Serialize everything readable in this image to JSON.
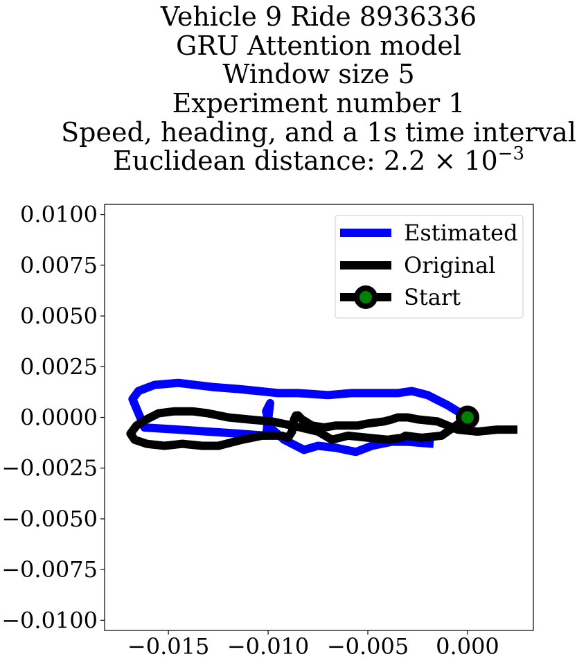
{
  "chart_data": {
    "type": "line",
    "title_lines": [
      "Vehicle 9 Ride 8936336",
      "GRU Attention model",
      "Window size 5",
      "Experiment number 1",
      "Speed, heading, and a 1s time interval"
    ],
    "title_distance_prefix": "Euclidean distance: 2.2 × 10",
    "title_distance_exponent": "−3",
    "xlabel": "",
    "ylabel": "",
    "xlim": [
      -0.0182,
      0.0033
    ],
    "ylim": [
      -0.0105,
      0.0105
    ],
    "xticks": [
      -0.015,
      -0.01,
      -0.005,
      0.0
    ],
    "xtick_labels": [
      "−0.015",
      "−0.010",
      "−0.005",
      "0.000"
    ],
    "yticks": [
      0.01,
      0.0075,
      0.005,
      0.0025,
      0.0,
      -0.0025,
      -0.005,
      -0.0075,
      -0.01
    ],
    "ytick_labels": [
      "0.0100",
      "0.0075",
      "0.0050",
      "0.0025",
      "0.0000",
      "−0.0025",
      "−0.0050",
      "−0.0075",
      "−0.0100"
    ],
    "legend_position": "top-right",
    "series": [
      {
        "name": "Estimated",
        "color": "#0000ff",
        "x": [
          0.0,
          -0.001,
          -0.002,
          -0.0028,
          -0.0035,
          -0.0045,
          -0.0058,
          -0.007,
          -0.0085,
          -0.0095,
          -0.0105,
          -0.0115,
          -0.0128,
          -0.0145,
          -0.0157,
          -0.0165,
          -0.0168,
          -0.0162,
          -0.0145,
          -0.013,
          -0.0115,
          -0.0101,
          -0.0099,
          -0.0101,
          -0.0099,
          -0.0092,
          -0.0082,
          -0.0075,
          -0.0066,
          -0.0056,
          -0.0048,
          -0.0038,
          -0.003,
          -0.0017
        ],
        "y": [
          0.0,
          0.0006,
          0.0011,
          0.0013,
          0.0012,
          0.0012,
          0.0012,
          0.0011,
          0.0012,
          0.0012,
          0.0013,
          0.0014,
          0.0015,
          0.0017,
          0.0016,
          0.0013,
          0.0009,
          -0.0005,
          -0.0006,
          -0.0007,
          -0.0008,
          -0.0009,
          0.0007,
          0.0003,
          -0.0005,
          -0.0011,
          -0.0016,
          -0.0014,
          -0.0015,
          -0.0017,
          -0.0014,
          -0.0012,
          -0.0012,
          -0.0013
        ]
      },
      {
        "name": "Original",
        "color": "#000000",
        "x": [
          0.0025,
          0.0015,
          0.0005,
          -0.0005,
          -0.0015,
          -0.0025,
          -0.003,
          -0.0035,
          -0.0038,
          -0.0042,
          -0.005,
          -0.0055,
          -0.006,
          -0.0062,
          -0.0066,
          -0.0072,
          -0.0078,
          -0.0083,
          -0.0085,
          -0.0086,
          -0.0087,
          -0.0088,
          -0.009,
          -0.0093,
          -0.0098,
          -0.0103,
          -0.0113,
          -0.0125,
          -0.0133,
          -0.0143,
          -0.0152,
          -0.0161,
          -0.0167,
          -0.0169,
          -0.0166,
          -0.0161,
          -0.0155,
          -0.0147,
          -0.0138,
          -0.013,
          -0.012,
          -0.011,
          -0.0098,
          -0.0088,
          -0.0075,
          -0.0068,
          -0.006,
          -0.004,
          -0.0033,
          -0.0031,
          -0.0023,
          -0.0013,
          0.0
        ],
        "y": [
          -0.0006,
          -0.0006,
          -0.0007,
          -0.0006,
          -0.0002,
          -0.0001,
          0.0,
          0.0,
          -0.0001,
          -0.0002,
          -0.0003,
          -0.0004,
          -0.0004,
          -0.0004,
          -0.0004,
          -0.0005,
          -0.0004,
          -0.0001,
          0.0001,
          0.0001,
          -0.0001,
          -0.0007,
          -0.001,
          -0.0009,
          -0.0009,
          -0.0009,
          -0.0011,
          -0.0014,
          -0.0014,
          -0.0013,
          -0.0014,
          -0.0013,
          -0.0011,
          -0.0008,
          -0.0004,
          -0.0001,
          0.0002,
          0.0003,
          0.0003,
          0.0002,
          0.0,
          -0.0001,
          -0.0002,
          -0.0004,
          -0.0007,
          -0.0011,
          -0.0009,
          -0.0011,
          -0.001,
          -0.0009,
          -0.001,
          -0.0009,
          0.0
        ]
      }
    ],
    "start_point": {
      "name": "Start",
      "x": 0.0,
      "y": 0.0,
      "outer_color": "#000000",
      "inner_color": "#008000"
    }
  }
}
